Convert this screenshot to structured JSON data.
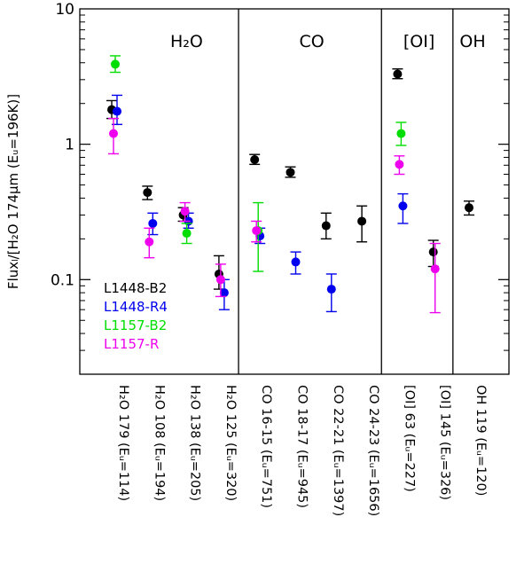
{
  "chart_data": {
    "type": "scatter",
    "ylabel": "Fluxₗ/[H₂O 174μm (Eᵤ=196K)]",
    "yscale": "log",
    "ylim": [
      0.02,
      10
    ],
    "yticks": [
      {
        "value": 0.1,
        "label": "0.1"
      },
      {
        "value": 1,
        "label": "1"
      },
      {
        "value": 10,
        "label": "10"
      }
    ],
    "groups": [
      {
        "label": "H₂O",
        "start": 0,
        "end": 3
      },
      {
        "label": "CO",
        "start": 4,
        "end": 7
      },
      {
        "label": "[OI]",
        "start": 8,
        "end": 9
      },
      {
        "label": "OH",
        "start": 10,
        "end": 10
      }
    ],
    "categories": [
      "H₂O 179 (Eᵤ=114)",
      "H₂O 108 (Eᵤ=194)",
      "H₂O 138 (Eᵤ=205)",
      "H₂O 125 (Eᵤ=320)",
      "CO 16-15 (Eᵤ=751)",
      "CO 18-17 (Eᵤ=945)",
      "CO 22-21 (Eᵤ=1397)",
      "CO 24-23 (Eᵤ=1656)",
      "[OI] 63 (Eᵤ=227)",
      "[OI] 145 (Eᵤ=326)",
      "OH 119 (Eᵤ=120)"
    ],
    "series": [
      {
        "name": "L1448-B2",
        "color": "#000000",
        "points": [
          {
            "i": 0,
            "y": 1.8,
            "lo": 1.55,
            "hi": 2.1
          },
          {
            "i": 1,
            "y": 0.44,
            "lo": 0.39,
            "hi": 0.49
          },
          {
            "i": 2,
            "y": 0.3,
            "lo": 0.27,
            "hi": 0.34
          },
          {
            "i": 3,
            "y": 0.11,
            "lo": 0.085,
            "hi": 0.15
          },
          {
            "i": 4,
            "y": 0.77,
            "lo": 0.71,
            "hi": 0.84
          },
          {
            "i": 5,
            "y": 0.62,
            "lo": 0.57,
            "hi": 0.68
          },
          {
            "i": 6,
            "y": 0.25,
            "lo": 0.2,
            "hi": 0.31
          },
          {
            "i": 7,
            "y": 0.27,
            "lo": 0.19,
            "hi": 0.35
          },
          {
            "i": 8,
            "y": 3.3,
            "lo": 3.05,
            "hi": 3.6
          },
          {
            "i": 9,
            "y": 0.16,
            "lo": 0.125,
            "hi": 0.195
          },
          {
            "i": 10,
            "y": 0.34,
            "lo": 0.3,
            "hi": 0.38
          }
        ]
      },
      {
        "name": "L1448-R4",
        "color": "#0000ee",
        "points": [
          {
            "i": 0,
            "y": 1.75,
            "lo": 1.4,
            "hi": 2.3
          },
          {
            "i": 1,
            "y": 0.26,
            "lo": 0.215,
            "hi": 0.31
          },
          {
            "i": 2,
            "y": 0.27,
            "lo": 0.24,
            "hi": 0.31
          },
          {
            "i": 3,
            "y": 0.08,
            "lo": 0.06,
            "hi": 0.1
          },
          {
            "i": 4,
            "y": 0.21,
            "lo": 0.185,
            "hi": 0.24
          },
          {
            "i": 5,
            "y": 0.135,
            "lo": 0.11,
            "hi": 0.16
          },
          {
            "i": 6,
            "y": 0.085,
            "lo": 0.058,
            "hi": 0.11
          },
          {
            "i": 8,
            "y": 0.35,
            "lo": 0.26,
            "hi": 0.43
          }
        ]
      },
      {
        "name": "L1157-B2",
        "color": "#00dd00",
        "points": [
          {
            "i": 0,
            "y": 3.9,
            "lo": 3.4,
            "hi": 4.5
          },
          {
            "i": 2,
            "y": 0.22,
            "lo": 0.185,
            "hi": 0.26
          },
          {
            "i": 4,
            "y": 0.23,
            "lo": 0.115,
            "hi": 0.37
          },
          {
            "i": 8,
            "y": 1.2,
            "lo": 0.98,
            "hi": 1.45
          }
        ]
      },
      {
        "name": "L1157-R",
        "color": "#ee00ee",
        "points": [
          {
            "i": 0,
            "y": 1.2,
            "lo": 0.85,
            "hi": 1.55
          },
          {
            "i": 1,
            "y": 0.19,
            "lo": 0.145,
            "hi": 0.24
          },
          {
            "i": 2,
            "y": 0.32,
            "lo": 0.27,
            "hi": 0.37
          },
          {
            "i": 3,
            "y": 0.1,
            "lo": 0.075,
            "hi": 0.13
          },
          {
            "i": 4,
            "y": 0.23,
            "lo": 0.19,
            "hi": 0.27
          },
          {
            "i": 8,
            "y": 0.71,
            "lo": 0.6,
            "hi": 0.82
          },
          {
            "i": 9,
            "y": 0.12,
            "lo": 0.057,
            "hi": 0.185
          }
        ]
      }
    ]
  }
}
